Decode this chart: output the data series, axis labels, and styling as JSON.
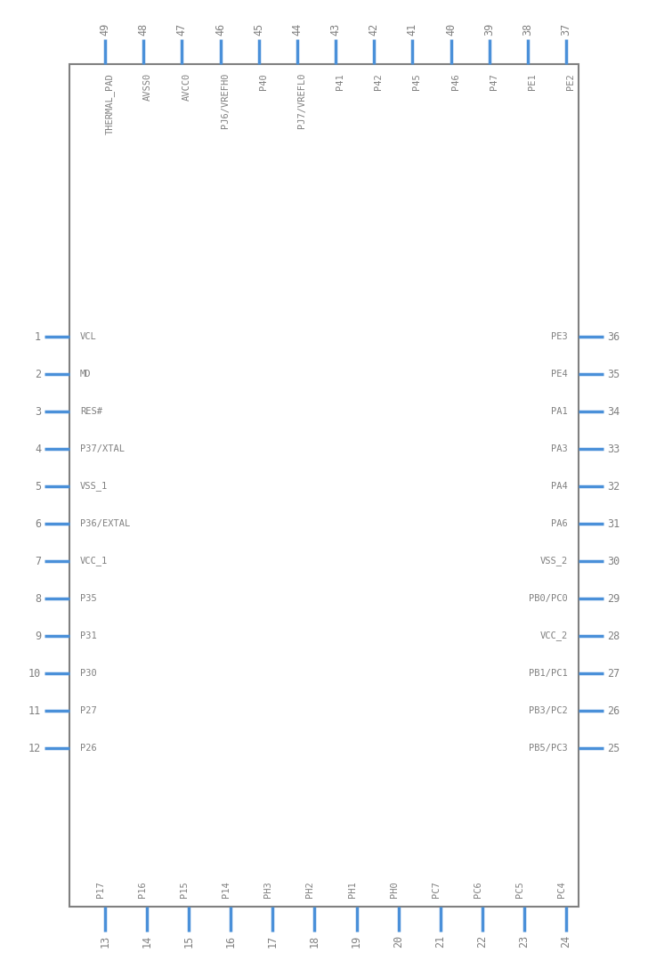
{
  "bg_color": "#ffffff",
  "pin_color": "#4a90d9",
  "body_color": "#808080",
  "text_color": "#808080",
  "left_pins": [
    {
      "num": 1,
      "label": "VCL"
    },
    {
      "num": 2,
      "label": "MD"
    },
    {
      "num": 3,
      "label": "RES#"
    },
    {
      "num": 4,
      "label": "P37/XTAL"
    },
    {
      "num": 5,
      "label": "VSS_1"
    },
    {
      "num": 6,
      "label": "P36/EXTAL"
    },
    {
      "num": 7,
      "label": "VCC_1"
    },
    {
      "num": 8,
      "label": "P35"
    },
    {
      "num": 9,
      "label": "P31"
    },
    {
      "num": 10,
      "label": "P30"
    },
    {
      "num": 11,
      "label": "P27"
    },
    {
      "num": 12,
      "label": "P26"
    }
  ],
  "right_pins": [
    {
      "num": 36,
      "label": "PE3"
    },
    {
      "num": 35,
      "label": "PE4"
    },
    {
      "num": 34,
      "label": "PA1"
    },
    {
      "num": 33,
      "label": "PA3"
    },
    {
      "num": 32,
      "label": "PA4"
    },
    {
      "num": 31,
      "label": "PA6"
    },
    {
      "num": 30,
      "label": "VSS_2"
    },
    {
      "num": 29,
      "label": "PB0/PC0"
    },
    {
      "num": 28,
      "label": "VCC_2"
    },
    {
      "num": 27,
      "label": "PB1/PC1"
    },
    {
      "num": 26,
      "label": "PB3/PC2"
    },
    {
      "num": 25,
      "label": "PB5/PC3"
    }
  ],
  "top_pins": [
    {
      "num": 49,
      "label": "THERMAL_PAD"
    },
    {
      "num": 48,
      "label": "AVSS0"
    },
    {
      "num": 47,
      "label": "AVCC0"
    },
    {
      "num": 46,
      "label": "PJ6/VREFH0"
    },
    {
      "num": 45,
      "label": "P40"
    },
    {
      "num": 44,
      "label": "PJ7/VREFL0"
    },
    {
      "num": 43,
      "label": "P41"
    },
    {
      "num": 42,
      "label": "P42"
    },
    {
      "num": 41,
      "label": "P45"
    },
    {
      "num": 40,
      "label": "P46"
    },
    {
      "num": 39,
      "label": "P47"
    },
    {
      "num": 38,
      "label": "PE1"
    },
    {
      "num": 37,
      "label": "PE2"
    }
  ],
  "bottom_pins": [
    {
      "num": 13,
      "label": "P17"
    },
    {
      "num": 14,
      "label": "P16"
    },
    {
      "num": 15,
      "label": "P15"
    },
    {
      "num": 16,
      "label": "P14"
    },
    {
      "num": 17,
      "label": "PH3"
    },
    {
      "num": 18,
      "label": "PH2"
    },
    {
      "num": 19,
      "label": "PH1"
    },
    {
      "num": 20,
      "label": "PH0"
    },
    {
      "num": 21,
      "label": "PC7"
    },
    {
      "num": 22,
      "label": "PC6"
    },
    {
      "num": 23,
      "label": "PC5"
    },
    {
      "num": 24,
      "label": "PC4"
    }
  ]
}
